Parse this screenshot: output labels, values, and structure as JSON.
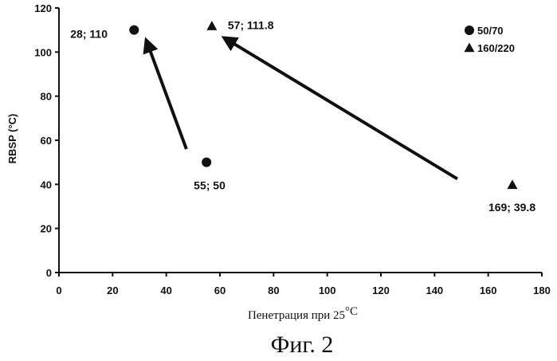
{
  "figure": {
    "caption": "Фиг. 2"
  },
  "chart_data": {
    "type": "scatter",
    "title": "",
    "xlabel": "Пенетрация при 25",
    "xlabel_unit": "°C",
    "ylabel": "RBSP (°C)",
    "xlim": [
      0,
      180
    ],
    "ylim": [
      0,
      120
    ],
    "xticks": [
      "0",
      "20",
      "40",
      "60",
      "80",
      "100",
      "120",
      "140",
      "160",
      "180"
    ],
    "yticks": [
      "0",
      "20",
      "40",
      "60",
      "80",
      "100",
      "120"
    ],
    "grid": false,
    "legend_position": "top-right",
    "series": [
      {
        "name": "50/70",
        "marker": "circle",
        "color": "#111111",
        "points": [
          {
            "x": 28,
            "y": 110,
            "label": "28; 110"
          },
          {
            "x": 55,
            "y": 50,
            "label": "55; 50"
          }
        ]
      },
      {
        "name": "160/220",
        "marker": "triangle",
        "color": "#111111",
        "points": [
          {
            "x": 57,
            "y": 111.8,
            "label": "57; 111.8"
          },
          {
            "x": 169,
            "y": 39.8,
            "label": "169; 39.8"
          }
        ]
      }
    ],
    "arrows": [
      {
        "from": {
          "x": 47.5,
          "y": 56
        },
        "to": {
          "x": 32.5,
          "y": 105.5
        }
      },
      {
        "from": {
          "x": 148.5,
          "y": 42.5
        },
        "to": {
          "x": 61.5,
          "y": 106.5
        }
      }
    ]
  }
}
